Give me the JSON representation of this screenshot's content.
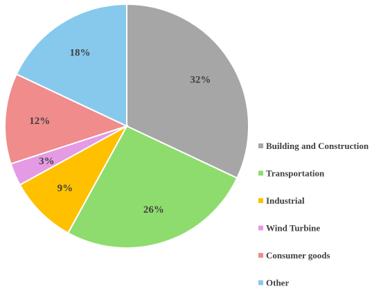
{
  "chart_data": {
    "type": "pie",
    "title": "",
    "legend_position": "right",
    "slices": [
      {
        "label": "Building and Construction",
        "value": 32,
        "display": "32%",
        "color": "#a6a6a6"
      },
      {
        "label": "Transportation",
        "value": 26,
        "display": "26%",
        "color": "#8fdc6e"
      },
      {
        "label": "Industrial",
        "value": 9,
        "display": "9%",
        "color": "#ffc000"
      },
      {
        "label": "Wind Turbine",
        "value": 3,
        "display": "3%",
        "color": "#e59be3"
      },
      {
        "label": "Consumer goods",
        "value": 12,
        "display": "12%",
        "color": "#f08c8c"
      },
      {
        "label": "Other",
        "value": 18,
        "display": "18%",
        "color": "#87c9ec"
      }
    ]
  }
}
